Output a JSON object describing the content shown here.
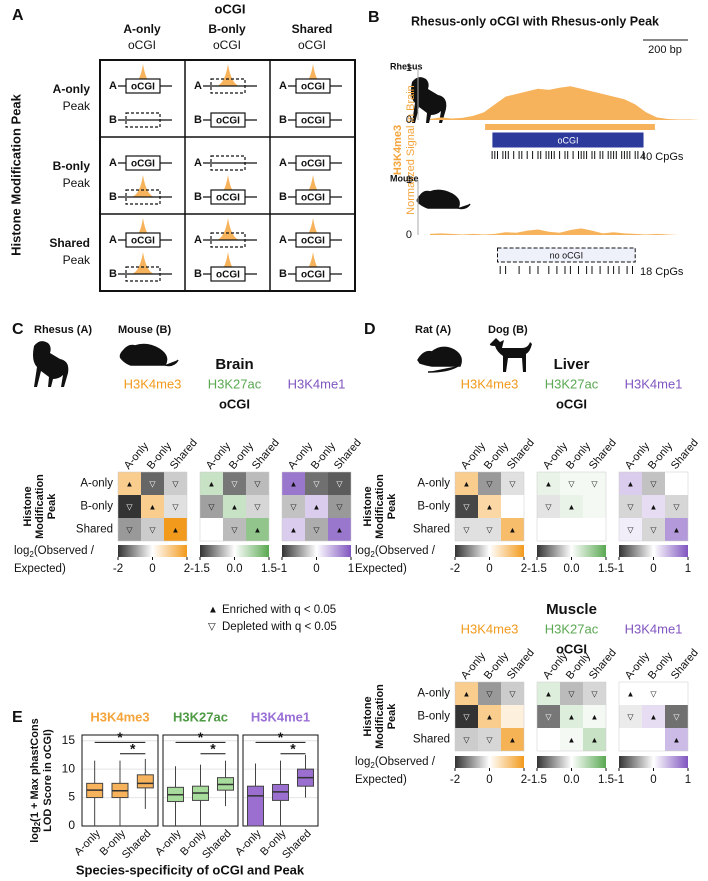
{
  "panel_labels": [
    "A",
    "B",
    "C",
    "D",
    "E"
  ],
  "panel_a": {
    "title": "oCGI",
    "columns": [
      [
        "A-only",
        "oCGI"
      ],
      [
        "B-only",
        "oCGI"
      ],
      [
        "Shared",
        "oCGI"
      ]
    ],
    "rows": [
      [
        "A-only",
        "Peak"
      ],
      [
        "B-only",
        "Peak"
      ],
      [
        "Shared",
        "Peak"
      ]
    ],
    "y_label": "Histone Modification Peak",
    "species": [
      "A",
      "B"
    ],
    "box_label": "oCGI",
    "peak_color": "#f7b35b"
  },
  "panel_b": {
    "title": "Rhesus-only oCGI with Rhesus-only Peak",
    "scale_bar": "200 bp",
    "y_label": [
      "H3K4me3",
      "Normalized Signal in Brain"
    ],
    "label_color": "#f4a43a",
    "xlim": [
      0,
      100
    ],
    "tracks": [
      {
        "name": "Rhesus",
        "color": "#f7b35b",
        "ylim": [
          0,
          1
        ],
        "yticks": [
          0,
          1
        ],
        "x": [
          0,
          4,
          8,
          12,
          16,
          20,
          24,
          28,
          32,
          36,
          40,
          44,
          48,
          52,
          56,
          60,
          64,
          68,
          72,
          76,
          80,
          84,
          88,
          92,
          96,
          100
        ],
        "values": [
          0.02,
          0.05,
          0.03,
          0.04,
          0.08,
          0.15,
          0.3,
          0.45,
          0.5,
          0.55,
          0.6,
          0.58,
          0.62,
          0.65,
          0.6,
          0.55,
          0.5,
          0.45,
          0.4,
          0.3,
          0.15,
          0.05,
          0.02,
          0.01,
          0.01,
          0
        ],
        "peak": [
          20.4,
          83.3
        ],
        "cgi": [
          23.3,
          78.9
        ],
        "cgi_present": true,
        "cgi_label": "oCGI",
        "cpg_count": "40 CpGs",
        "cpg_positions": [
          23,
          24,
          25,
          27,
          28,
          29,
          31,
          33,
          34,
          36,
          38,
          40,
          41,
          43,
          44,
          45,
          46,
          48,
          50,
          51,
          53,
          55,
          56,
          57,
          58,
          60,
          61,
          63,
          64,
          66,
          67,
          68,
          69,
          71,
          72,
          73,
          74,
          76,
          77,
          79
        ]
      },
      {
        "name": "Mouse",
        "color": "#f7b35b",
        "ylim": [
          0,
          1
        ],
        "yticks": [
          0,
          1
        ],
        "x": [
          0,
          4,
          8,
          12,
          16,
          20,
          24,
          28,
          32,
          36,
          40,
          44,
          48,
          52,
          56,
          60,
          64,
          68,
          72,
          76,
          80,
          84,
          88,
          92,
          96,
          100
        ],
        "values": [
          0.02,
          0.03,
          0.02,
          0.01,
          0.02,
          0.01,
          0.02,
          0.05,
          0.04,
          0.08,
          0.1,
          0.06,
          0.04,
          0.09,
          0.12,
          0.08,
          0.03,
          0.05,
          0.03,
          0.02,
          0.01,
          0.02,
          0.01,
          0,
          0,
          0
        ],
        "cgi": [
          25,
          76
        ],
        "cgi_present": false,
        "cgi_label": "no oCGI",
        "cpg_count": "18 CpGs",
        "cpg_positions": [
          26,
          28,
          33,
          37,
          40,
          44,
          47,
          50,
          52,
          55,
          58,
          60,
          63,
          66,
          68,
          70,
          73,
          75
        ]
      }
    ]
  },
  "colorbar_label": [
    "log",
    "2",
    "(Observed /",
    "Expected)"
  ],
  "legend": [
    {
      "symbol": "▲",
      "text": "Enriched with q < 0.05"
    },
    {
      "symbol": "▽",
      "text": "Depleted with q < 0.05"
    }
  ],
  "panel_c": {
    "species": [
      "Rhesus (A)",
      "Mouse (B)"
    ],
    "columns": [
      "A-only",
      "B-only",
      "Shared"
    ],
    "rows": [
      "A-only",
      "B-only",
      "Shared"
    ],
    "y_label": [
      "Histone",
      "Modification",
      "Peak"
    ],
    "col_title": "oCGI",
    "tissues": [
      {
        "tissue": "Brain",
        "marks": [
          {
            "name": "H3K4me3",
            "color": "#f29a1c",
            "lim": [
              -2,
              2
            ],
            "ticks": [
              -2,
              0,
              2
            ],
            "values": [
              [
                1,
                -1.5,
                -0.5
              ],
              [
                -2,
                1,
                -0.3
              ],
              [
                -1,
                -0.5,
                2
              ]
            ],
            "symbols": [
              [
                "▲",
                "▽",
                "▽"
              ],
              [
                "▽",
                "▲",
                "▽"
              ],
              [
                "▽",
                "▽",
                "▲"
              ]
            ]
          },
          {
            "name": "H3K27ac",
            "color": "#5aa852",
            "lim": [
              -1.5,
              1.5
            ],
            "ticks": [
              -1.5,
              {
                "value": 0,
                "label": "0.0"
              },
              1.5
            ],
            "values": [
              [
                0.5,
                -1,
                -0.5
              ],
              [
                -0.7,
                0.5,
                -0.3
              ],
              [
                0,
                -0.5,
                1
              ]
            ],
            "symbols": [
              [
                "▲",
                "▽",
                "▽"
              ],
              [
                "▽",
                "▲",
                "▽"
              ],
              [
                null,
                "▽",
                "▲"
              ]
            ]
          },
          {
            "name": "H3K4me1",
            "color": "#8055c0",
            "lim": [
              -1,
              1
            ],
            "ticks": [
              -1,
              0,
              1
            ],
            "values": [
              [
                0.8,
                -0.7,
                -0.8
              ],
              [
                -0.3,
                0.3,
                -0.5
              ],
              [
                0.3,
                -0.4,
                0.8
              ]
            ],
            "symbols": [
              [
                "▲",
                "▽",
                "▽"
              ],
              [
                "▽",
                "▲",
                "▽"
              ],
              [
                "▲",
                "▽",
                "▲"
              ]
            ]
          }
        ]
      }
    ]
  },
  "panel_d": {
    "species": [
      "Rat (A)",
      "Dog (B)"
    ],
    "columns": [
      "A-only",
      "B-only",
      "Shared"
    ],
    "rows": [
      "A-only",
      "B-only",
      "Shared"
    ],
    "y_label": [
      "Histone",
      "Modification",
      "Peak"
    ],
    "col_title": "oCGI",
    "tissues": [
      {
        "tissue": "Liver",
        "marks": [
          {
            "name": "H3K4me3",
            "color": "#f29a1c",
            "lim": [
              -2,
              2
            ],
            "ticks": [
              -2,
              0,
              2
            ],
            "values": [
              [
                1,
                -1,
                -0.3
              ],
              [
                -1.8,
                0.8,
                0
              ],
              [
                -0.3,
                -0.3,
                1.3
              ]
            ],
            "symbols": [
              [
                "▲",
                "▽",
                "▽"
              ],
              [
                "▽",
                "▲",
                null
              ],
              [
                "▽",
                "▽",
                "▲"
              ]
            ]
          },
          {
            "name": "H3K27ac",
            "color": "#5aa852",
            "lim": [
              -1.5,
              1.5
            ],
            "ticks": [
              -1.5,
              {
                "value": 0,
                "label": "0.0"
              },
              1.5
            ],
            "values": [
              [
                0.2,
                0.1,
                0.1
              ],
              [
                -0.2,
                0.2,
                0.1
              ],
              [
                0,
                0,
                0
              ]
            ],
            "symbols": [
              [
                "▲",
                "▽",
                "▽"
              ],
              [
                "▽",
                "▲",
                null
              ],
              [
                null,
                null,
                null
              ]
            ]
          },
          {
            "name": "H3K4me1",
            "color": "#8055c0",
            "lim": [
              -1,
              1
            ],
            "ticks": [
              -1,
              0,
              1
            ],
            "values": [
              [
                0.3,
                -0.3,
                0
              ],
              [
                -0.2,
                0.2,
                -0.2
              ],
              [
                0.1,
                -0.2,
                0.6
              ]
            ],
            "symbols": [
              [
                "▲",
                "▽",
                null
              ],
              [
                "▽",
                "▲",
                "▽"
              ],
              [
                "▽",
                "▽",
                "▲"
              ]
            ]
          }
        ]
      },
      {
        "tissue": "Muscle",
        "marks": [
          {
            "name": "H3K4me3",
            "color": "#f29a1c",
            "lim": [
              -2,
              2
            ],
            "ticks": [
              -2,
              0,
              2
            ],
            "values": [
              [
                1,
                -1,
                -0.5
              ],
              [
                -2,
                1,
                0.3
              ],
              [
                -0.5,
                -0.4,
                1.5
              ]
            ],
            "symbols": [
              [
                "▲",
                "▽",
                "▽"
              ],
              [
                "▽",
                "▲",
                null
              ],
              [
                "▽",
                "▽",
                "▲"
              ]
            ]
          },
          {
            "name": "H3K27ac",
            "color": "#5aa852",
            "lim": [
              -1.5,
              1.5
            ],
            "ticks": [
              -1.5,
              {
                "value": 0,
                "label": "0.0"
              },
              1.5
            ],
            "values": [
              [
                0.3,
                -0.5,
                -0.3
              ],
              [
                -1,
                0.3,
                0.1
              ],
              [
                0,
                0.1,
                0.5
              ]
            ],
            "symbols": [
              [
                "▲",
                "▽",
                "▽"
              ],
              [
                "▽",
                "▲",
                "▲"
              ],
              [
                null,
                "▲",
                "▲"
              ]
            ]
          },
          {
            "name": "H3K4me1",
            "color": "#8055c0",
            "lim": [
              -1,
              1
            ],
            "ticks": [
              -1,
              0,
              1
            ],
            "values": [
              [
                0,
                0,
                0
              ],
              [
                -0.1,
                0.2,
                -0.7
              ],
              [
                0,
                0,
                0.4
              ]
            ],
            "symbols": [
              [
                "▲",
                "▽",
                null
              ],
              [
                "▽",
                "▲",
                "▽"
              ],
              [
                null,
                null,
                "▲"
              ]
            ]
          }
        ]
      }
    ]
  },
  "panel_e": {
    "y_label": [
      "log",
      "2",
      "(1 + Max phastCons",
      "LOD Score in oCGI)"
    ],
    "x_label": "Species-specificity of oCGI and Peak",
    "categories": [
      "A-only",
      "B-only",
      "Shared"
    ],
    "ylim": [
      0,
      16
    ],
    "yticks": [
      0,
      5,
      10,
      15
    ],
    "panels": [
      {
        "name": "H3K4me3",
        "title_color": "#f4a43a",
        "color": "#f7b35b",
        "boxes": [
          [
            0,
            5,
            6.3,
            7.5,
            11.5
          ],
          [
            0,
            5,
            6.2,
            7.5,
            11.5
          ],
          [
            3,
            6.7,
            7.5,
            9,
            11.8
          ]
        ],
        "significance": [
          {
            "pair": [
              "A-only",
              "Shared"
            ],
            "y": 14.7,
            "label": "*"
          },
          {
            "pair": [
              "B-only",
              "Shared"
            ],
            "y": 12.7,
            "label": "*"
          }
        ]
      },
      {
        "name": "H3K27ac",
        "title_color": "#4e9a45",
        "color": "#a8dc9c",
        "boxes": [
          [
            0,
            4.3,
            5.5,
            6.8,
            10.5
          ],
          [
            0,
            4.5,
            5.8,
            7,
            10.8
          ],
          [
            3.5,
            6.3,
            7.3,
            8.5,
            11.5
          ]
        ],
        "significance": [
          {
            "pair": [
              "A-only",
              "Shared"
            ],
            "y": 14.7,
            "label": "*"
          },
          {
            "pair": [
              "B-only",
              "Shared"
            ],
            "y": 12.7,
            "label": "*"
          }
        ]
      },
      {
        "name": "H3K4me1",
        "title_color": "#9a6fd6",
        "color": "#9b6fd0",
        "boxes": [
          [
            0,
            0,
            5.3,
            7,
            11
          ],
          [
            0,
            4.5,
            6,
            7.3,
            11.5
          ],
          [
            5,
            7,
            8.5,
            10,
            12.5
          ]
        ],
        "significance": [
          {
            "pair": [
              "A-only",
              "Shared"
            ],
            "y": 14.7,
            "label": "*"
          },
          {
            "pair": [
              "B-only",
              "Shared"
            ],
            "y": 12.7,
            "label": "*"
          }
        ]
      }
    ]
  }
}
